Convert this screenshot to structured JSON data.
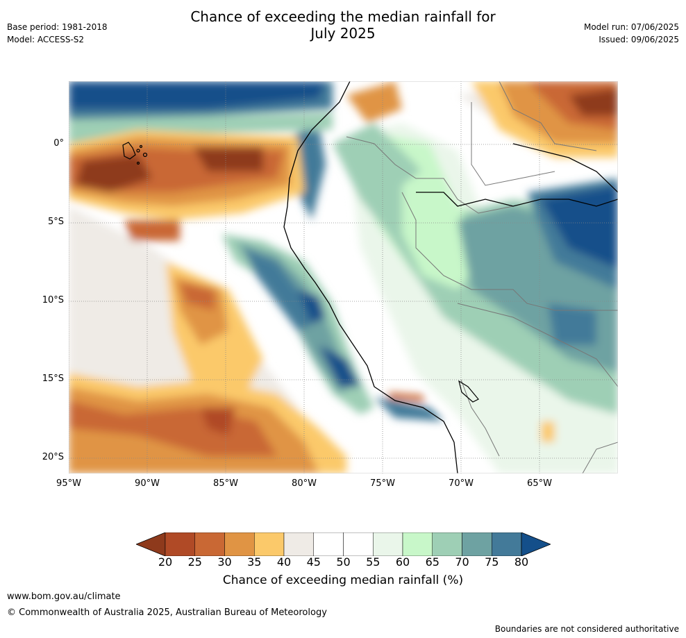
{
  "header": {
    "title_line1": "Chance of exceeding the median rainfall for",
    "title_line2": "July 2025",
    "base_period": "Base period: 1981-2018",
    "model": "Model: ACCESS-S2",
    "model_run": "Model run: 07/06/2025",
    "issued": "Issued: 09/06/2025"
  },
  "map": {
    "lat_labels": [
      "0°",
      "5°S",
      "10°S",
      "15°S",
      "20°S"
    ],
    "lon_labels": [
      "95°W",
      "90°W",
      "85°W",
      "80°W",
      "75°W",
      "70°W",
      "65°W"
    ]
  },
  "colorbar": {
    "ticks": [
      "20",
      "25",
      "30",
      "35",
      "40",
      "45",
      "50",
      "55",
      "60",
      "65",
      "70",
      "75",
      "80"
    ],
    "colors": [
      "#8e3a1c",
      "#b04a26",
      "#c96834",
      "#e09444",
      "#fbc96a",
      "#efebe6",
      "#ffffff",
      "#ffffff",
      "#eaf6ea",
      "#c8f7c9",
      "#9ecfb5",
      "#6ea2a2",
      "#437a99",
      "#144f8a"
    ],
    "label": "Chance of exceeding median rainfall (%)"
  },
  "footer": {
    "url": "www.bom.gov.au/climate",
    "copyright": "© Commonwealth of Australia 2025, Australian Bureau of Meteorology",
    "disclaimer": "Boundaries are not considered authoritative"
  }
}
